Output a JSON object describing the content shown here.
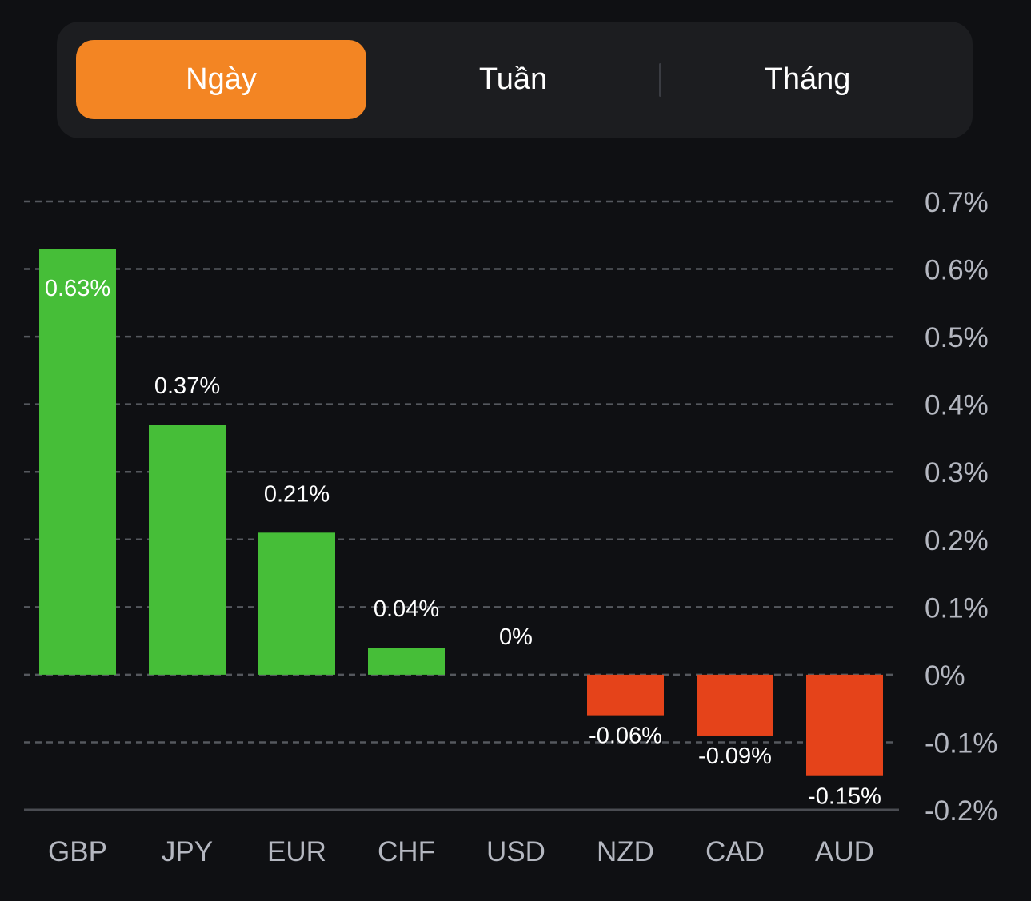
{
  "tabs": [
    {
      "label": "Ngày",
      "active": true
    },
    {
      "label": "Tuần",
      "active": false
    },
    {
      "label": "Tháng",
      "active": false
    }
  ],
  "colors": {
    "background": "#0f1013",
    "segment_bg": "#1c1d20",
    "active_tab": "#f38523",
    "positive": "#46be38",
    "negative": "#e5431a",
    "grid": "#55585e",
    "axis_text": "#b4b7c0",
    "label_text": "#ffffff"
  },
  "chart_data": {
    "type": "bar",
    "title": "",
    "xlabel": "",
    "ylabel": "",
    "categories": [
      "GBP",
      "JPY",
      "EUR",
      "CHF",
      "USD",
      "NZD",
      "CAD",
      "AUD"
    ],
    "values": [
      0.63,
      0.37,
      0.21,
      0.04,
      0,
      -0.06,
      -0.09,
      -0.15
    ],
    "value_labels": [
      "0.63%",
      "0.37%",
      "0.21%",
      "0.04%",
      "0%",
      "-0.06%",
      "-0.09%",
      "-0.15%"
    ],
    "ylim": [
      -0.2,
      0.7
    ],
    "yticks": [
      0.7,
      0.6,
      0.5,
      0.4,
      0.3,
      0.2,
      0.1,
      0,
      -0.1,
      -0.2
    ],
    "ytick_labels": [
      "0.7%",
      "0.6%",
      "0.5%",
      "0.4%",
      "0.3%",
      "0.2%",
      "0.1%",
      "0%",
      "-0.1%",
      "-0.2%"
    ],
    "grid": true,
    "y_axis_position": "right",
    "legend": "none"
  }
}
